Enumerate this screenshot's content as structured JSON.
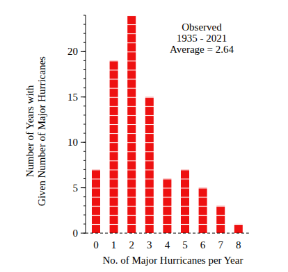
{
  "chart_data": {
    "type": "bar",
    "annotations": [
      "Observed",
      "1935 - 2021",
      "Average = 2.64"
    ],
    "x_label": "No. of Major Hurricanes per Year",
    "y_label": [
      "Number of Years with",
      "Given Number of Major Hurricanes"
    ],
    "categories": [
      "0",
      "1",
      "2",
      "3",
      "4",
      "5",
      "6",
      "7",
      "8"
    ],
    "values": [
      7,
      19,
      24,
      15,
      6,
      7,
      5,
      3,
      1
    ],
    "color": "#ee1111",
    "ylim": [
      0,
      24
    ],
    "yticks": [
      0,
      5,
      10,
      15,
      20
    ],
    "grid": false
  }
}
